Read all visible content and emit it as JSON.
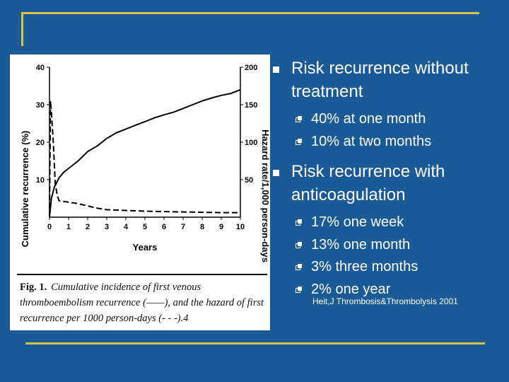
{
  "bullets": [
    {
      "text": "Risk recurrence without treatment",
      "sub": [
        "40% at one month",
        "10% at two months"
      ]
    },
    {
      "text": "Risk recurrence with anticoagulation",
      "sub": [
        "17% one week",
        "13% one month",
        "3% three months",
        "2% one year"
      ]
    }
  ],
  "citation": "Heit,J Thrombosis&Thrombolysis 2001",
  "figure": {
    "caption_label": "Fig. 1.",
    "caption_text": "Cumulative incidence of first venous thromboembolism recurrence (——), and the hazard of first recurrence per 1000 person-days (- - -).4"
  },
  "colors": {
    "background": "#1a5a96",
    "accent": "#d4c44a",
    "text": "#ffffff"
  },
  "chart_data": {
    "type": "line",
    "xlabel": "Years",
    "ylabel": "Cumulative recurrence (%)",
    "ylabel_right": "Hazard rate/1,000 person-days",
    "xlim": [
      0,
      10
    ],
    "ylim": [
      0,
      40
    ],
    "ylim_right": [
      0,
      200
    ],
    "x_ticks": [
      "0",
      "1",
      "2",
      "3",
      "4",
      "5",
      "6",
      "7",
      "8",
      "9",
      "10"
    ],
    "y_ticks": [
      "10",
      "20",
      "30",
      "40"
    ],
    "y_ticks_right": [
      "50",
      "100",
      "150",
      "200"
    ],
    "series": [
      {
        "name": "Cumulative recurrence",
        "axis": "left",
        "style": "solid",
        "x": [
          0,
          0.1,
          0.25,
          0.5,
          0.75,
          1,
          1.5,
          2,
          2.5,
          3,
          3.5,
          4,
          4.5,
          5,
          5.5,
          6,
          6.5,
          7,
          7.5,
          8,
          8.5,
          9,
          9.5,
          10
        ],
        "y": [
          0,
          5,
          8,
          10.5,
          12,
          13,
          15,
          17.5,
          19,
          21,
          22.5,
          23.5,
          24.5,
          25.5,
          26.5,
          27.3,
          28,
          29,
          30,
          31,
          31.8,
          32.5,
          33,
          34
        ]
      },
      {
        "name": "Hazard rate",
        "axis": "right",
        "style": "dashed",
        "x": [
          0,
          0.05,
          0.1,
          0.2,
          0.3,
          0.4,
          0.5,
          1,
          1.5,
          2,
          2.5,
          3,
          4,
          5,
          6,
          7,
          8,
          9,
          10
        ],
        "y": [
          0,
          155,
          140,
          100,
          45,
          30,
          22,
          20,
          18,
          15,
          12,
          10,
          9,
          8,
          7.5,
          7,
          6.5,
          6,
          6
        ]
      }
    ]
  }
}
